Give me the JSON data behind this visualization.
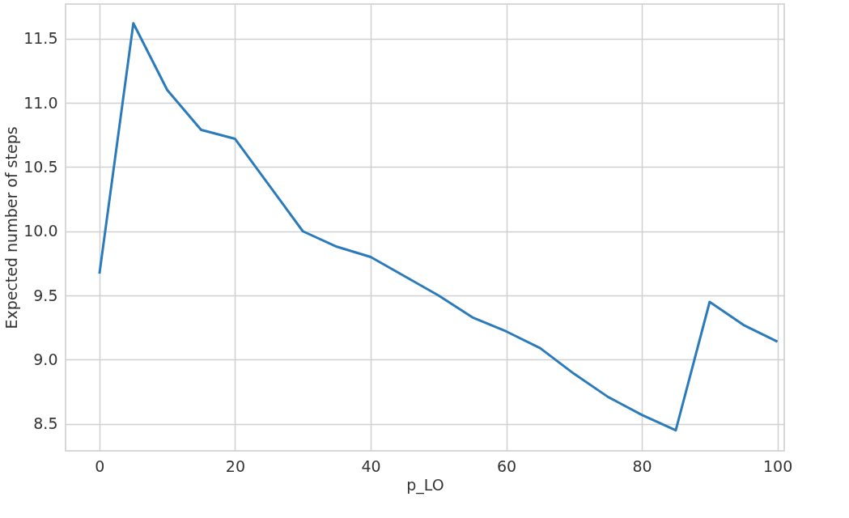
{
  "chart_data": {
    "type": "line",
    "xlabel": "p_LO",
    "ylabel": "Expected number of steps",
    "x": [
      0,
      5,
      10,
      15,
      20,
      25,
      30,
      35,
      40,
      45,
      50,
      55,
      60,
      65,
      70,
      75,
      80,
      85,
      90,
      95,
      100
    ],
    "series": [
      {
        "color": "#2b7bba",
        "values": [
          9.67,
          11.62,
          11.1,
          10.79,
          10.72,
          10.36,
          10.0,
          9.88,
          9.8,
          9.65,
          9.5,
          9.33,
          9.22,
          9.09,
          8.89,
          8.71,
          8.57,
          8.45,
          9.45,
          9.27,
          9.14
        ]
      }
    ],
    "xlim": [
      -5,
      101
    ],
    "ylim": [
      8.29,
      11.77
    ],
    "xticks": [
      0,
      20,
      40,
      60,
      80,
      100
    ],
    "yticks": [
      8.5,
      {
        "value": 9,
        "label": "9.0"
      },
      9.5,
      {
        "value": 10,
        "label": "10.0"
      },
      10.5,
      {
        "value": 11,
        "label": "11.0"
      },
      11.5
    ],
    "grid": true,
    "marker": "none",
    "line_style": "solid"
  }
}
